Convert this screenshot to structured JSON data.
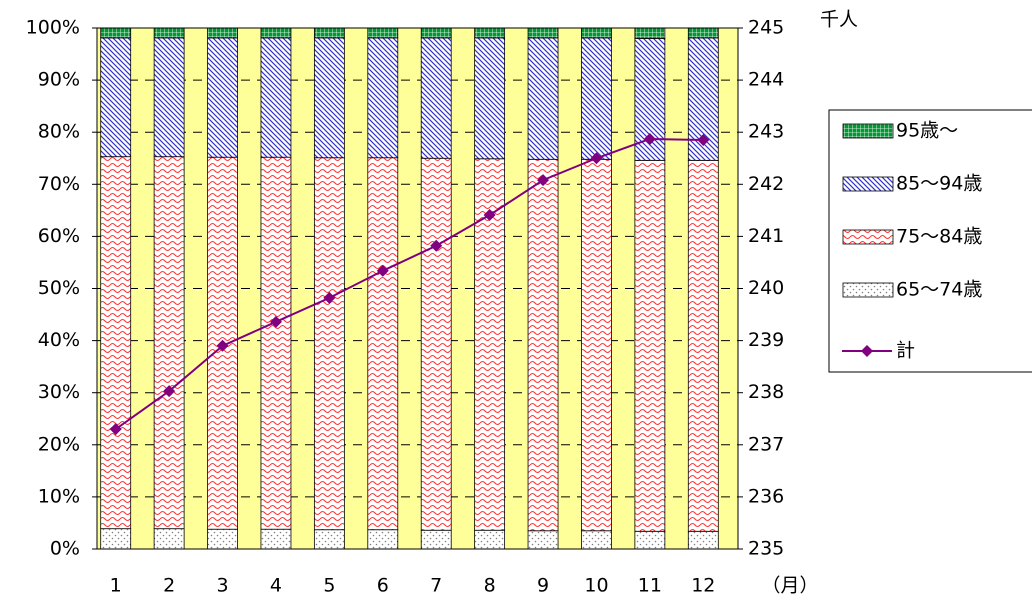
{
  "chart_data": {
    "type": "stacked-bar-line",
    "categories": [
      "1",
      "2",
      "3",
      "4",
      "5",
      "6",
      "7",
      "8",
      "9",
      "10",
      "11",
      "12"
    ],
    "x_unit": "（月）",
    "y2_unit": "千人",
    "series": [
      {
        "name": "65～74歳",
        "color": "#808080",
        "values": [
          3.9,
          3.9,
          3.8,
          3.8,
          3.7,
          3.7,
          3.6,
          3.6,
          3.5,
          3.5,
          3.4,
          3.4
        ]
      },
      {
        "name": "75～84歳",
        "color": "#ff3333",
        "values": [
          71.4,
          71.4,
          71.4,
          71.4,
          71.4,
          71.4,
          71.4,
          71.3,
          71.3,
          71.3,
          71.2,
          71.2
        ]
      },
      {
        "name": "85～94歳",
        "color": "#3333cc",
        "values": [
          22.8,
          22.8,
          22.9,
          22.9,
          23.0,
          23.0,
          23.1,
          23.2,
          23.3,
          23.3,
          23.4,
          23.5
        ]
      },
      {
        "name": "95歳～",
        "color": "#009933",
        "values": [
          1.9,
          1.9,
          1.9,
          1.9,
          1.9,
          1.9,
          1.9,
          1.9,
          1.9,
          1.9,
          2.0,
          1.9
        ]
      },
      {
        "name": "計",
        "color": "#800080",
        "axis": "y2",
        "values": [
          237.3,
          238.03,
          238.9,
          239.36,
          239.82,
          240.34,
          240.82,
          241.41,
          242.08,
          242.5,
          242.87,
          242.85
        ]
      }
    ],
    "ylim": [
      0,
      100
    ],
    "yticks": [
      {
        "value": 0,
        "label": "0%"
      },
      {
        "value": 10,
        "label": "10%"
      },
      {
        "value": 20,
        "label": "20%"
      },
      {
        "value": 30,
        "label": "30%"
      },
      {
        "value": 40,
        "label": "40%"
      },
      {
        "value": 50,
        "label": "50%"
      },
      {
        "value": 60,
        "label": "60%"
      },
      {
        "value": 70,
        "label": "70%"
      },
      {
        "value": 80,
        "label": "80%"
      },
      {
        "value": 90,
        "label": "90%"
      },
      {
        "value": 100,
        "label": "100%"
      }
    ],
    "y2lim": [
      235,
      245
    ],
    "y2ticks": [
      235,
      236,
      237,
      238,
      239,
      240,
      241,
      242,
      243,
      244,
      245
    ],
    "grid": true,
    "plot_background": "#ffff99",
    "legend": "right"
  }
}
